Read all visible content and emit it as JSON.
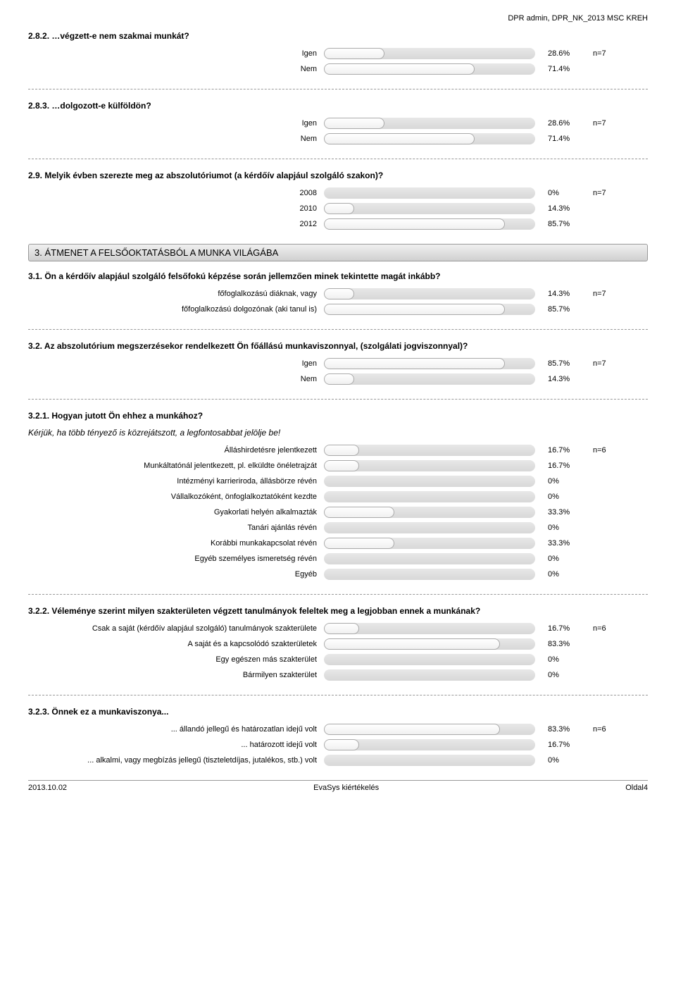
{
  "header_right": "DPR admin, DPR_NK_2013 MSC KREH",
  "bar_track_bg": "#e0e0e0",
  "bar_fill_bg": "#f8f8f8",
  "sections": {
    "s3_title": "3. ÁTMENET A FELSŐOKTATÁSBÓL A MUNKA VILÁGÁBA"
  },
  "questions": [
    {
      "id": "q282",
      "title": "2.8.2. …végzett-e nem szakmai munkát?",
      "n": "n=7",
      "rows": [
        {
          "label": "Igen",
          "value": 28.6,
          "text": "28.6%"
        },
        {
          "label": "Nem",
          "value": 71.4,
          "text": "71.4%"
        }
      ]
    },
    {
      "id": "q283",
      "title": "2.8.3. …dolgozott-e külföldön?",
      "n": "n=7",
      "rows": [
        {
          "label": "Igen",
          "value": 28.6,
          "text": "28.6%"
        },
        {
          "label": "Nem",
          "value": 71.4,
          "text": "71.4%"
        }
      ]
    },
    {
      "id": "q29",
      "title": "2.9. Melyik évben szerezte meg az abszolutóriumot (a kérdőív alapjául szolgáló szakon)?",
      "n": "n=7",
      "rows": [
        {
          "label": "2008",
          "value": 0,
          "text": "0%"
        },
        {
          "label": "2010",
          "value": 14.3,
          "text": "14.3%"
        },
        {
          "label": "2012",
          "value": 85.7,
          "text": "85.7%"
        }
      ]
    },
    {
      "id": "q31",
      "title": "3.1. Ön a kérdőív alapjául szolgáló felsőfokú képzése során jellemzően minek tekintette magát inkább?",
      "n": "n=7",
      "rows": [
        {
          "label": "főfoglalkozású diáknak, vagy",
          "value": 14.3,
          "text": "14.3%"
        },
        {
          "label": "főfoglalkozású dolgozónak (aki tanul is)",
          "value": 85.7,
          "text": "85.7%"
        }
      ]
    },
    {
      "id": "q32",
      "title": "3.2. Az abszolutórium megszerzésekor rendelkezett Ön főállású munkaviszonnyal, (szolgálati jogviszonnyal)?",
      "n": "n=7",
      "rows": [
        {
          "label": "Igen",
          "value": 85.7,
          "text": "85.7%"
        },
        {
          "label": "Nem",
          "value": 14.3,
          "text": "14.3%"
        }
      ]
    },
    {
      "id": "q321",
      "title": "3.2.1. Hogyan jutott Ön ehhez a munkához?",
      "subtitle": "Kérjük, ha több tényező is közrejátszott, a legfontosabbat jelölje be!",
      "n": "n=6",
      "rows": [
        {
          "label": "Álláshirdetésre jelentkezett",
          "value": 16.7,
          "text": "16.7%"
        },
        {
          "label": "Munkáltatónál jelentkezett, pl. elküldte önéletrajzát",
          "value": 16.7,
          "text": "16.7%"
        },
        {
          "label": "Intézményi karrieriroda, állásbörze révén",
          "value": 0,
          "text": "0%"
        },
        {
          "label": "Vállalkozóként, önfoglalkoztatóként kezdte",
          "value": 0,
          "text": "0%"
        },
        {
          "label": "Gyakorlati helyén alkalmazták",
          "value": 33.3,
          "text": "33.3%"
        },
        {
          "label": "Tanári ajánlás révén",
          "value": 0,
          "text": "0%"
        },
        {
          "label": "Korábbi munkakapcsolat révén",
          "value": 33.3,
          "text": "33.3%"
        },
        {
          "label": "Egyéb személyes ismeretség révén",
          "value": 0,
          "text": "0%"
        },
        {
          "label": "Egyéb",
          "value": 0,
          "text": "0%"
        }
      ]
    },
    {
      "id": "q322",
      "title": "3.2.2. Véleménye szerint milyen szakterületen végzett tanulmányok feleltek meg a legjobban ennek a munkának?",
      "n": "n=6",
      "rows": [
        {
          "label": "Csak a saját (kérdőív alapjául szolgáló) tanulmányok szakterülete",
          "value": 16.7,
          "text": "16.7%"
        },
        {
          "label": "A saját és a kapcsolódó szakterületek",
          "value": 83.3,
          "text": "83.3%"
        },
        {
          "label": "Egy egészen más szakterület",
          "value": 0,
          "text": "0%"
        },
        {
          "label": "Bármilyen szakterület",
          "value": 0,
          "text": "0%"
        }
      ]
    },
    {
      "id": "q323",
      "title": "3.2.3. Önnek ez a munkaviszonya...",
      "n": "n=6",
      "rows": [
        {
          "label": "... állandó jellegű és határozatlan idejű volt",
          "value": 83.3,
          "text": "83.3%"
        },
        {
          "label": "... határozott idejű volt",
          "value": 16.7,
          "text": "16.7%"
        },
        {
          "label": "... alkalmi, vagy megbízás jellegű (tiszteletdíjas, jutalékos, stb.) volt",
          "value": 0,
          "text": "0%"
        }
      ]
    }
  ],
  "footer": {
    "left": "2013.10.02",
    "center": "EvaSys kiértékelés",
    "right": "Oldal4"
  }
}
